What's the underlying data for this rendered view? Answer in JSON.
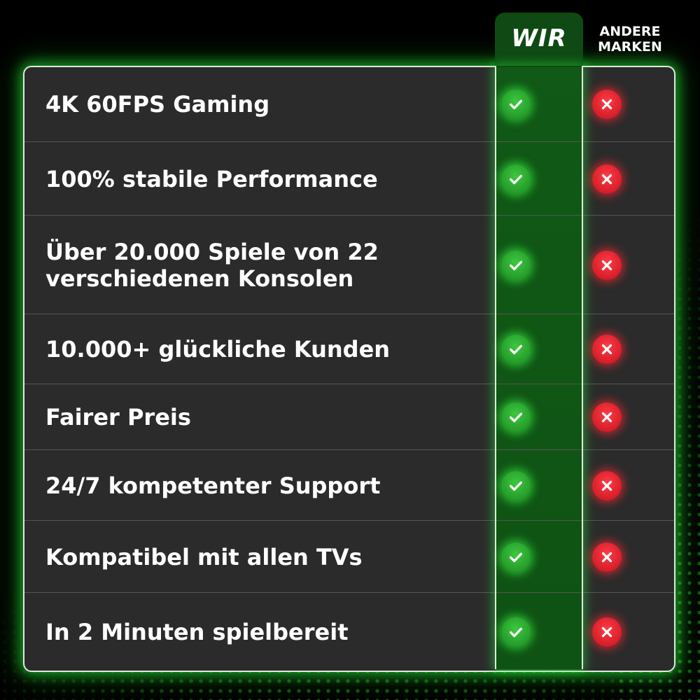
{
  "header": {
    "wir": "WIR",
    "andere_line1": "ANDERE",
    "andere_line2": "MARKEN"
  },
  "colors": {
    "accent_green": "#2fbf35",
    "accent_red": "#e0202b",
    "table_bg": "#2b2b2b"
  },
  "rows": [
    {
      "label": "4K 60FPS Gaming",
      "wir": "check-icon",
      "andere": "cross-icon"
    },
    {
      "label": "100% stabile Performance",
      "wir": "check-icon",
      "andere": "cross-icon"
    },
    {
      "label": "Über 20.000 Spiele von 22 verschiedenen Konsolen",
      "wir": "check-icon",
      "andere": "cross-icon"
    },
    {
      "label": "10.000+ glückliche Kunden",
      "wir": "check-icon",
      "andere": "cross-icon"
    },
    {
      "label": "Fairer Preis",
      "wir": "check-icon",
      "andere": "cross-icon"
    },
    {
      "label": "24/7 kompetenter Support",
      "wir": "check-icon",
      "andere": "cross-icon"
    },
    {
      "label": "Kompatibel mit allen TVs",
      "wir": "check-icon",
      "andere": "cross-icon"
    },
    {
      "label": "In 2 Minuten spielbereit",
      "wir": "check-icon",
      "andere": "cross-icon"
    }
  ]
}
